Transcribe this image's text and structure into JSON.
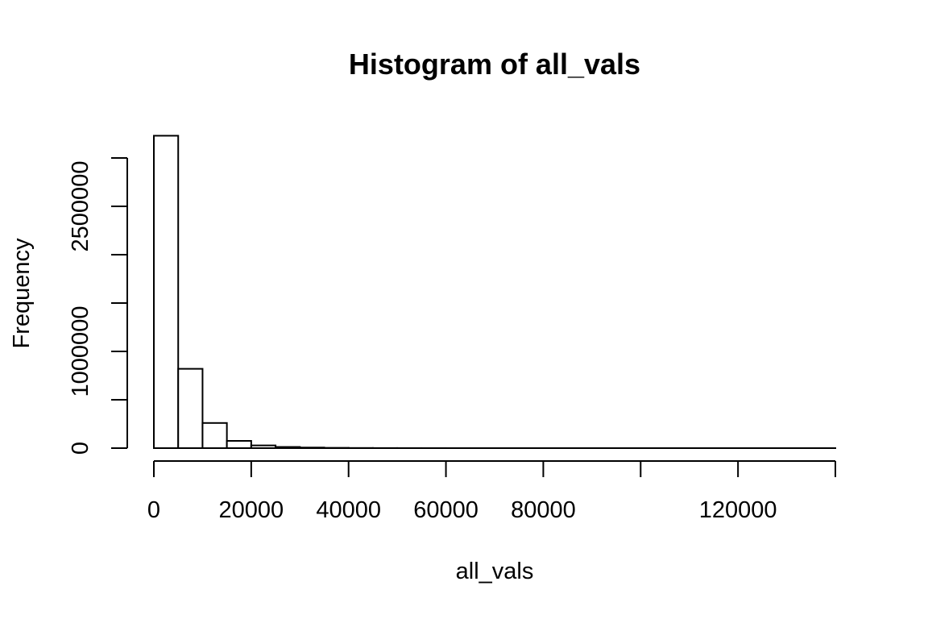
{
  "chart_data": {
    "type": "bar",
    "title": "Histogram of all_vals",
    "xlabel": "all_vals",
    "ylabel": "Frequency",
    "xlim": [
      0,
      140000
    ],
    "ylim": [
      0,
      3300000
    ],
    "bin_width": 5000,
    "categories": [
      "0-5000",
      "5000-10000",
      "10000-15000",
      "15000-20000",
      "20000-25000",
      "25000-30000",
      "30000-35000",
      "35000-40000",
      "40000-45000",
      "45000-50000",
      "50000-55000",
      "55000-60000",
      "60000-65000",
      "65000-70000",
      "70000-75000",
      "75000-80000",
      "80000-85000",
      "85000-90000",
      "90000-95000",
      "95000-100000",
      "100000-105000",
      "105000-110000",
      "110000-115000",
      "115000-120000",
      "120000-125000",
      "125000-130000",
      "130000-135000",
      "135000-140000"
    ],
    "bins": [
      0,
      5000,
      10000,
      15000,
      20000,
      25000,
      30000,
      35000,
      40000,
      45000,
      50000,
      55000,
      60000,
      65000,
      70000,
      75000,
      80000,
      85000,
      90000,
      95000,
      100000,
      105000,
      110000,
      115000,
      120000,
      125000,
      130000,
      135000,
      140000
    ],
    "values": [
      3230000,
      820000,
      260000,
      75000,
      28000,
      12000,
      6000,
      3000,
      1500,
      800,
      400,
      200,
      100,
      50,
      30,
      20,
      10,
      5,
      3,
      2,
      1,
      1,
      1,
      1,
      1,
      1,
      1,
      1
    ],
    "x_ticks": [
      0,
      20000,
      40000,
      60000,
      80000,
      100000,
      120000,
      140000
    ],
    "x_tick_labels": [
      "0",
      "20000",
      "40000",
      "60000",
      "80000",
      "",
      "120000",
      ""
    ],
    "y_ticks": [
      0,
      500000,
      1000000,
      1500000,
      2000000,
      2500000,
      3000000
    ],
    "y_tick_labels": [
      "0",
      "1000000",
      "2500000"
    ],
    "y_tick_label_values": [
      0,
      1000000,
      2500000
    ],
    "grid": false,
    "legend": "none"
  }
}
